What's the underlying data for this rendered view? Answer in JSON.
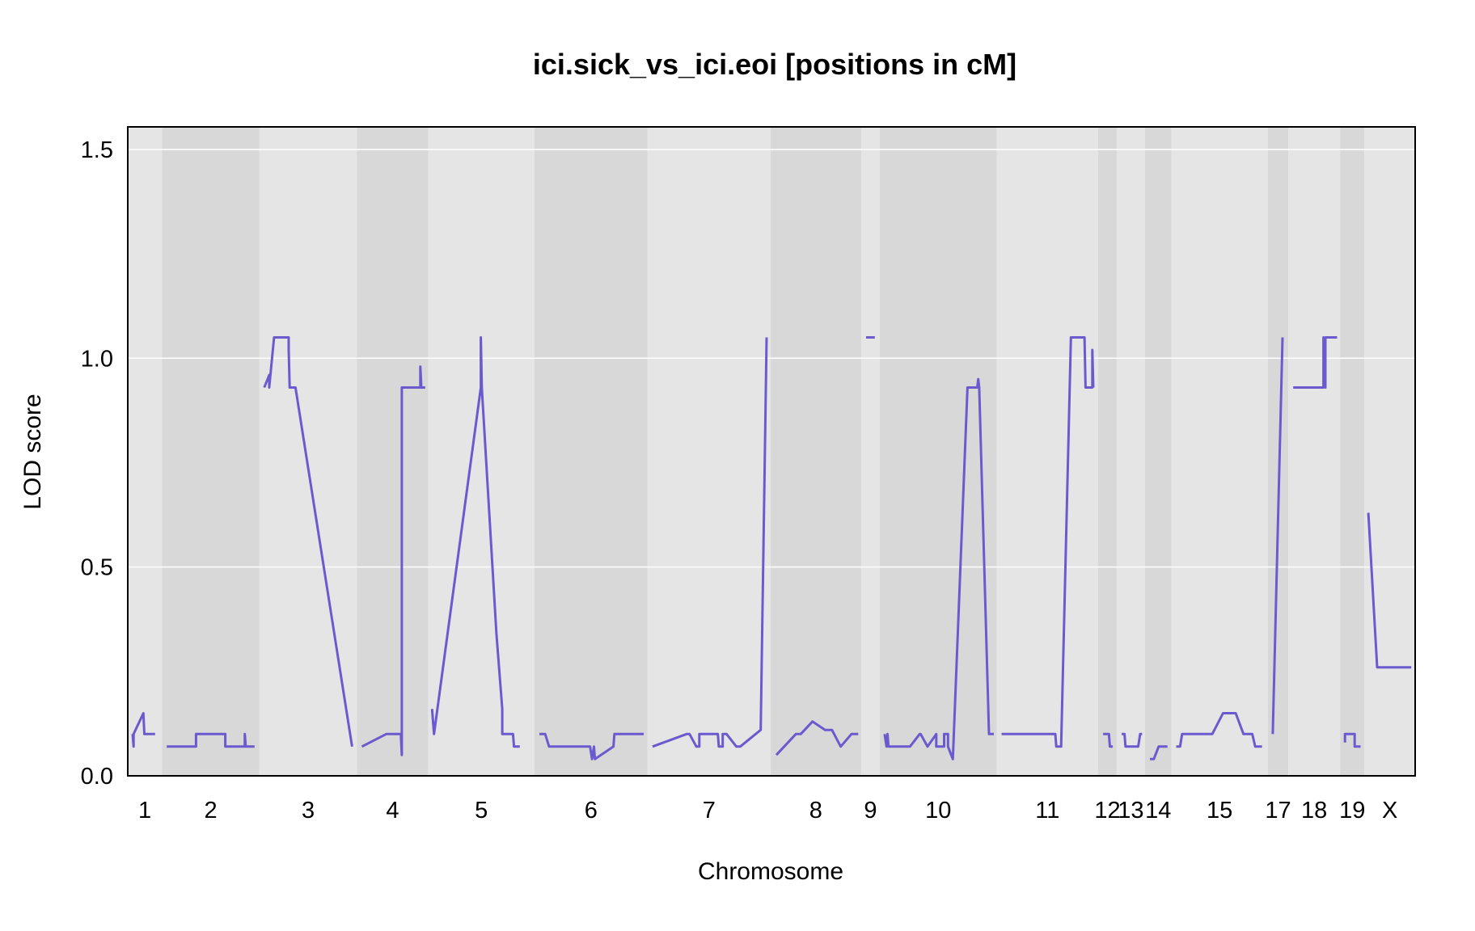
{
  "chart_data": {
    "type": "line",
    "title": "ici.sick_vs_ici.eoi [positions in cM]",
    "xlabel": "Chromosome",
    "ylabel": "LOD score",
    "ylim": [
      0,
      1.5
    ],
    "yticks": [
      0.0,
      0.5,
      1.0,
      1.5
    ],
    "ytick_labels": [
      "0.0",
      "0.5",
      "1.0",
      "1.5"
    ],
    "grid": true,
    "line_color": "#6a5acd",
    "band_colors": [
      "#e5e5e5",
      "#d8d8d8"
    ],
    "chromosomes": [
      {
        "label": "1",
        "range": [
          0,
          3.5
        ],
        "segments": [
          [
            [
              0.5,
              0.1
            ],
            [
              0.6,
              0.07
            ],
            [
              0.6,
              0.1
            ],
            [
              1.6,
              0.15
            ],
            [
              1.7,
              0.1
            ],
            [
              2.8,
              0.1
            ]
          ]
        ]
      },
      {
        "label": "2",
        "range": [
          3.5,
          13.5
        ],
        "segments": [
          [
            [
              4,
              0.07
            ],
            [
              7,
              0.07
            ],
            [
              7,
              0.1
            ],
            [
              10,
              0.1
            ],
            [
              10,
              0.07
            ],
            [
              12,
              0.07
            ],
            [
              12,
              0.1
            ],
            [
              12.1,
              0.07
            ],
            [
              13,
              0.07
            ]
          ]
        ]
      },
      {
        "label": "3",
        "range": [
          13.5,
          23.5
        ],
        "segments": [
          [
            [
              14,
              0.93
            ],
            [
              14.5,
              0.96
            ],
            [
              14.5,
              0.93
            ],
            [
              15,
              1.05
            ],
            [
              16.5,
              1.05
            ],
            [
              16.5,
              1.02
            ],
            [
              16.6,
              0.93
            ],
            [
              17.2,
              0.93
            ],
            [
              23,
              0.07
            ]
          ]
        ]
      },
      {
        "label": "4",
        "range": [
          23.5,
          30.8
        ],
        "segments": [
          [
            [
              24,
              0.07
            ],
            [
              26.5,
              0.1
            ],
            [
              28,
              0.1
            ],
            [
              28.1,
              0.05
            ],
            [
              28.1,
              0.93
            ],
            [
              30,
              0.93
            ],
            [
              30,
              0.98
            ],
            [
              30.1,
              0.93
            ],
            [
              30.5,
              0.93
            ]
          ]
        ]
      },
      {
        "label": "5",
        "range": [
          30.8,
          41.7
        ],
        "segments": [
          [
            [
              31.2,
              0.16
            ],
            [
              31.4,
              0.1
            ],
            [
              36.2,
              0.93
            ],
            [
              36.2,
              1.05
            ],
            [
              36.3,
              0.93
            ],
            [
              37.8,
              0.34
            ],
            [
              38.4,
              0.16
            ],
            [
              38.4,
              0.1
            ],
            [
              39.5,
              0.1
            ],
            [
              39.6,
              0.07
            ],
            [
              40.2,
              0.07
            ]
          ]
        ]
      },
      {
        "label": "6",
        "range": [
          41.7,
          53.3
        ],
        "segments": [
          [
            [
              42.2,
              0.1
            ],
            [
              42.8,
              0.1
            ],
            [
              43.2,
              0.07
            ],
            [
              47.4,
              0.07
            ],
            [
              47.6,
              0.04
            ],
            [
              47.8,
              0.07
            ],
            [
              47.9,
              0.04
            ],
            [
              49.8,
              0.07
            ],
            [
              49.9,
              0.1
            ],
            [
              52.9,
              0.1
            ]
          ]
        ]
      },
      {
        "label": "7",
        "range": [
          53.3,
          65.9
        ],
        "segments": [
          [
            [
              53.8,
              0.07
            ],
            [
              57.3,
              0.1
            ],
            [
              57.6,
              0.1
            ],
            [
              58.3,
              0.07
            ],
            [
              58.6,
              0.07
            ],
            [
              58.6,
              0.1
            ],
            [
              60.5,
              0.1
            ],
            [
              60.6,
              0.07
            ],
            [
              61,
              0.07
            ],
            [
              61,
              0.1
            ],
            [
              61.4,
              0.1
            ],
            [
              62.4,
              0.07
            ],
            [
              62.8,
              0.07
            ],
            [
              64.9,
              0.11
            ],
            [
              64.9,
              0.11
            ],
            [
              65.5,
              1.05
            ]
          ]
        ]
      },
      {
        "label": "8",
        "range": [
          65.9,
          75.2
        ],
        "segments": [
          [
            [
              66.5,
              0.05
            ],
            [
              68.5,
              0.1
            ],
            [
              69,
              0.1
            ],
            [
              70.2,
              0.13
            ],
            [
              71.5,
              0.11
            ],
            [
              72.2,
              0.11
            ],
            [
              73.1,
              0.07
            ],
            [
              74.2,
              0.1
            ],
            [
              74.9,
              0.1
            ]
          ]
        ]
      },
      {
        "label": "9",
        "range": [
          75.2,
          77.1
        ],
        "segments": [
          [
            [
              75.7,
              1.05
            ],
            [
              76.6,
              1.05
            ]
          ]
        ]
      },
      {
        "label": "10",
        "range": [
          77.1,
          89.1
        ],
        "segments": [
          [
            [
              77.6,
              0.1
            ],
            [
              77.8,
              0.07
            ],
            [
              77.9,
              0.1
            ],
            [
              78.0,
              0.07
            ],
            [
              80.2,
              0.07
            ],
            [
              81.2,
              0.1
            ],
            [
              81.3,
              0.1
            ],
            [
              82,
              0.07
            ],
            [
              82.9,
              0.1
            ],
            [
              82.9,
              0.07
            ],
            [
              83.7,
              0.07
            ],
            [
              83.7,
              0.1
            ],
            [
              84.1,
              0.1
            ],
            [
              84.1,
              0.07
            ],
            [
              84.6,
              0.04
            ],
            [
              86.1,
              0.93
            ],
            [
              87.1,
              0.93
            ],
            [
              87.2,
              0.95
            ],
            [
              87.3,
              0.93
            ],
            [
              88.3,
              0.1
            ],
            [
              88.8,
              0.1
            ]
          ]
        ]
      },
      {
        "label": "11",
        "range": [
          89.1,
          99.5
        ],
        "segments": [
          [
            [
              89.6,
              0.1
            ],
            [
              95.1,
              0.1
            ],
            [
              95.2,
              0.07
            ],
            [
              95.7,
              0.07
            ],
            [
              96.7,
              1.05
            ],
            [
              98.1,
              1.05
            ],
            [
              98.2,
              0.93
            ],
            [
              98.9,
              0.93
            ],
            [
              98.9,
              1.02
            ],
            [
              99,
              0.93
            ]
          ]
        ]
      },
      {
        "label": "12",
        "range": [
          99.5,
          101.4
        ],
        "segments": [
          [
            [
              100,
              0.1
            ],
            [
              100.6,
              0.1
            ],
            [
              100.7,
              0.07
            ],
            [
              101,
              0.07
            ]
          ]
        ]
      },
      {
        "label": "13",
        "range": [
          101.4,
          104.3
        ],
        "segments": [
          [
            [
              101.9,
              0.1
            ],
            [
              102.2,
              0.1
            ],
            [
              102.3,
              0.07
            ],
            [
              103.6,
              0.07
            ],
            [
              103.8,
              0.1
            ],
            [
              104,
              0.1
            ]
          ]
        ]
      },
      {
        "label": "14",
        "range": [
          104.3,
          107
        ],
        "segments": [
          [
            [
              104.8,
              0.04
            ],
            [
              105.2,
              0.04
            ],
            [
              105.7,
              0.07
            ],
            [
              106.6,
              0.07
            ]
          ]
        ]
      },
      {
        "label": "15",
        "range": [
          107,
          116.9
        ],
        "segments": [
          [
            [
              107.5,
              0.07
            ],
            [
              107.9,
              0.07
            ],
            [
              108.1,
              0.1
            ],
            [
              111.2,
              0.1
            ],
            [
              112.3,
              0.15
            ],
            [
              113.6,
              0.15
            ],
            [
              114.4,
              0.1
            ],
            [
              115.3,
              0.1
            ],
            [
              115.6,
              0.07
            ],
            [
              116.3,
              0.07
            ]
          ]
        ]
      },
      {
        "label": "17",
        "range": [
          116.9,
          119
        ],
        "segments": [
          [
            [
              117.4,
              0.1
            ],
            [
              118.4,
              1.05
            ]
          ]
        ]
      },
      {
        "label": "18",
        "range": [
          119,
          124.3
        ],
        "segments": [
          [
            [
              119.5,
              0.93
            ],
            [
              122.6,
              0.93
            ],
            [
              122.6,
              1.05
            ],
            [
              122.8,
              0.93
            ],
            [
              122.8,
              1.05
            ],
            [
              124,
              1.05
            ]
          ]
        ]
      },
      {
        "label": "19",
        "range": [
          124.3,
          126.8
        ],
        "segments": [
          [
            [
              124.8,
              0.08
            ],
            [
              124.8,
              0.1
            ],
            [
              125.8,
              0.1
            ],
            [
              125.8,
              0.07
            ],
            [
              126.4,
              0.07
            ]
          ]
        ]
      },
      {
        "label": "X",
        "range": [
          126.8,
          132
        ],
        "segments": [
          [
            [
              127.2,
              0.63
            ],
            [
              128.1,
              0.26
            ],
            [
              131.6,
              0.26
            ]
          ]
        ]
      }
    ]
  }
}
